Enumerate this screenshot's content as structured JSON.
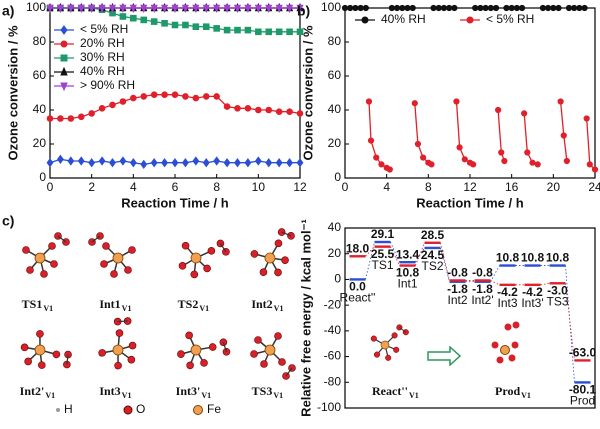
{
  "chart_data": [
    {
      "type": "line",
      "panel": "a)",
      "xlabel": "Reaction Time / h",
      "ylabel": "Ozone conversion / %",
      "x": [
        0,
        0.5,
        1,
        1.5,
        2,
        2.5,
        3,
        3.5,
        4,
        4.5,
        5,
        5.5,
        6,
        6.5,
        7,
        7.5,
        8,
        8.5,
        9,
        9.5,
        10,
        10.5,
        11,
        11.5,
        12
      ],
      "xlim": [
        0,
        12
      ],
      "xticks": [
        0,
        2,
        4,
        6,
        8,
        10,
        12
      ],
      "ylim": [
        0,
        100
      ],
      "yticks": [
        0,
        20,
        40,
        60,
        80,
        100
      ],
      "legend": "upper left",
      "series": [
        {
          "name": "< 5% RH",
          "color": "#2a4fd6",
          "marker": "diamond",
          "values": [
            9,
            11,
            10,
            10,
            9,
            10,
            9,
            10,
            9,
            8,
            9,
            9,
            9,
            9,
            10,
            9,
            10,
            9,
            9,
            9,
            10,
            9,
            9,
            9,
            9
          ]
        },
        {
          "name": "20% RH",
          "color": "#e0202a",
          "marker": "circle",
          "values": [
            35,
            35,
            35,
            36,
            38,
            41,
            43,
            45,
            47,
            48,
            49,
            49,
            49,
            48,
            47,
            48,
            48,
            42,
            41,
            41,
            40,
            40,
            39,
            39,
            38
          ]
        },
        {
          "name": "30% RH",
          "color": "#1e9a6a",
          "marker": "square",
          "values": [
            100,
            100,
            100,
            100,
            100,
            99,
            97,
            95,
            94,
            93,
            92,
            91,
            90,
            90,
            89,
            89,
            88,
            87,
            87,
            87,
            86,
            86,
            86,
            86,
            86
          ]
        },
        {
          "name": "40% RH",
          "color": "#111111",
          "marker": "triangle",
          "values": [
            100,
            100,
            100,
            100,
            100,
            100,
            100,
            100,
            100,
            100,
            100,
            100,
            100,
            100,
            100,
            100,
            100,
            100,
            100,
            100,
            100,
            100,
            100,
            100,
            100
          ]
        },
        {
          "name": "> 90% RH",
          "color": "#a040d0",
          "marker": "triangle-down",
          "values": [
            100,
            100,
            100,
            100,
            100,
            100,
            100,
            100,
            100,
            100,
            100,
            100,
            100,
            100,
            100,
            100,
            100,
            100,
            100,
            100,
            100,
            100,
            100,
            100,
            100
          ]
        }
      ]
    },
    {
      "type": "line",
      "panel": "b)",
      "xlabel": "Reaction Time / h",
      "ylabel": "Ozone conversion / %",
      "xlim": [
        0,
        24
      ],
      "xticks": [
        0,
        4,
        8,
        12,
        16,
        20,
        24
      ],
      "ylim": [
        0,
        100
      ],
      "yticks": [
        0,
        20,
        40,
        60,
        80,
        100
      ],
      "legend": "top",
      "series": [
        {
          "name": "40% RH",
          "color": "#111111",
          "marker": "circle",
          "x": [
            0,
            0.5,
            1,
            1.5,
            2,
            null,
            4.5,
            5,
            5.5,
            6,
            6.5,
            null,
            8.5,
            9,
            9.5,
            10,
            10.5,
            null,
            12.5,
            13,
            13.5,
            14,
            14.5,
            null,
            15.5,
            16,
            16.5,
            17,
            null,
            19,
            19.5,
            20,
            20.5,
            null,
            21.5,
            22,
            22.5,
            23
          ],
          "values": [
            100,
            100,
            100,
            100,
            100,
            null,
            100,
            100,
            100,
            100,
            100,
            null,
            100,
            100,
            100,
            100,
            100,
            null,
            100,
            100,
            100,
            100,
            100,
            null,
            100,
            100,
            100,
            100,
            null,
            100,
            100,
            100,
            100,
            null,
            100,
            100,
            100,
            100
          ]
        },
        {
          "name": "< 5% RH",
          "color": "#e0202a",
          "marker": "circle",
          "x": [
            2.3,
            2.5,
            3,
            3.5,
            4,
            4.3,
            null,
            6.7,
            7,
            7.5,
            8,
            8.3,
            null,
            10.7,
            11,
            11.5,
            12,
            12.3,
            null,
            14.7,
            15,
            15.3,
            null,
            17.2,
            17.5,
            18,
            18.5,
            null,
            20.7,
            21,
            21.3,
            null,
            23.2,
            23.5,
            24
          ],
          "values": [
            45,
            22,
            12,
            8,
            6,
            5,
            null,
            44,
            20,
            12,
            9,
            8,
            null,
            45,
            18,
            11,
            9,
            8,
            null,
            40,
            15,
            10,
            null,
            38,
            15,
            9,
            8,
            null,
            45,
            25,
            10,
            null,
            35,
            8,
            5
          ]
        }
      ]
    },
    {
      "type": "energy-levels",
      "ylabel": "Relative free energy / kcal mol⁻¹",
      "ylim": [
        -100,
        40
      ],
      "yticks": [
        -100,
        -80,
        -60,
        -40,
        -20,
        0,
        20,
        40
      ],
      "categories": [
        "React''",
        "TS1",
        "Int1",
        "TS2",
        "Int2",
        "Int2'",
        "Int3",
        "Int3'",
        "TS3",
        "Prod"
      ],
      "series": [
        {
          "color": "#2a4fd6",
          "values": [
            0.0,
            29.1,
            13.4,
            24.5,
            -1.8,
            -1.8,
            10.8,
            10.8,
            10.8,
            -80.1
          ],
          "value_labels": [
            "0.0",
            "29.1",
            "13.4",
            "24.5",
            "-1.8",
            "-1.8",
            "10.8",
            "10.8",
            "10.8",
            "-80.1"
          ]
        },
        {
          "color": "#e0202a",
          "values": [
            18.0,
            25.5,
            10.8,
            28.5,
            -0.8,
            -0.8,
            -4.2,
            -4.2,
            -3.0,
            -63.0
          ],
          "value_labels": [
            "18.0",
            "25.5",
            "10.8",
            "28.5",
            "-0.8",
            "-0.8",
            "-4.2",
            "-4.2",
            "-3.0",
            "-63.0"
          ]
        }
      ],
      "annotations": [
        {
          "text": "React''",
          "sub": "V1"
        },
        {
          "text": "Prod",
          "sub": "V1"
        }
      ]
    }
  ],
  "structures": {
    "panel": "c)",
    "items": [
      {
        "name": "TS1",
        "sub": "V1"
      },
      {
        "name": "Int1",
        "sub": "V1"
      },
      {
        "name": "TS2",
        "sub": "V1"
      },
      {
        "name": "Int2",
        "sub": "V1"
      },
      {
        "name": "Int2'",
        "sub": "V1"
      },
      {
        "name": "Int3",
        "sub": "V1"
      },
      {
        "name": "Int3'",
        "sub": "V1"
      },
      {
        "name": "TS3",
        "sub": "V1"
      }
    ],
    "legend": [
      "H",
      "O",
      "Fe"
    ]
  }
}
